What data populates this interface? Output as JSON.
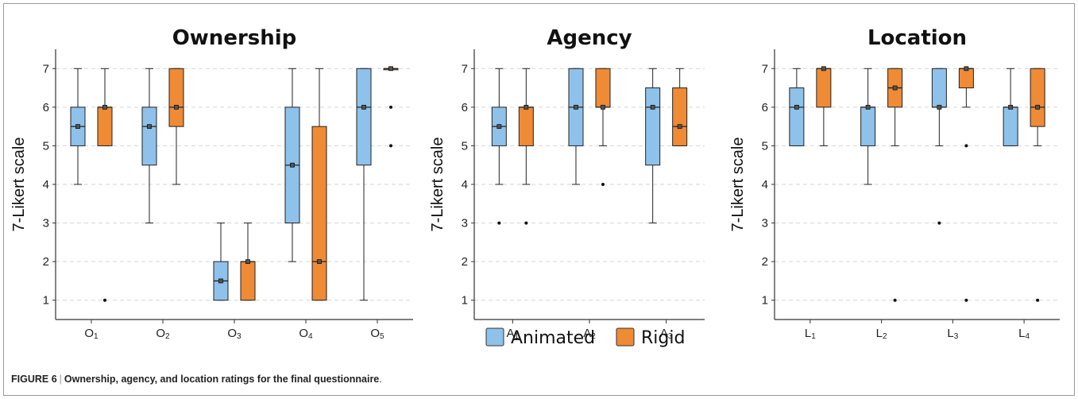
{
  "caption": {
    "label": "FIGURE 6",
    "separator": "|",
    "text": "Ownership, agency, and location ratings for the final questionnaire",
    "end": "."
  },
  "legend": {
    "items": [
      {
        "name": "Animated",
        "color": "#8ec2ea"
      },
      {
        "name": "Rigid",
        "color": "#ef8a35"
      }
    ]
  },
  "chart_data": [
    {
      "type": "box",
      "title": "Ownership",
      "ylabel": "7-Likert scale",
      "ylim": [
        0.5,
        7.5
      ],
      "yticks": [
        "1",
        "2",
        "3",
        "4",
        "5",
        "6",
        "7"
      ],
      "grid": "horizontal dashed",
      "categories": [
        {
          "main": "O",
          "sub": "1"
        },
        {
          "main": "O",
          "sub": "2"
        },
        {
          "main": "O",
          "sub": "3"
        },
        {
          "main": "O",
          "sub": "4"
        },
        {
          "main": "O",
          "sub": "5"
        }
      ],
      "series": [
        {
          "name": "Animated",
          "color": "#8ec2ea",
          "boxes": [
            {
              "min": 4,
              "q1": 5,
              "median": 5.5,
              "q3": 6,
              "max": 7,
              "outliers": []
            },
            {
              "min": 3,
              "q1": 4.5,
              "median": 5.5,
              "q3": 6,
              "max": 7,
              "outliers": []
            },
            {
              "min": 1,
              "q1": 1,
              "median": 1.5,
              "q3": 2,
              "max": 3,
              "outliers": []
            },
            {
              "min": 2,
              "q1": 3,
              "median": 4.5,
              "q3": 6,
              "max": 7,
              "outliers": []
            },
            {
              "min": 1,
              "q1": 4.5,
              "median": 6,
              "q3": 7,
              "max": 7,
              "outliers": []
            }
          ]
        },
        {
          "name": "Rigid",
          "color": "#ef8a35",
          "boxes": [
            {
              "min": 5,
              "q1": 5,
              "median": 6,
              "q3": 6,
              "max": 7,
              "outliers": [
                1
              ]
            },
            {
              "min": 4,
              "q1": 5.5,
              "median": 6,
              "q3": 7,
              "max": 7,
              "outliers": []
            },
            {
              "min": 1,
              "q1": 1,
              "median": 2,
              "q3": 2,
              "max": 3,
              "outliers": []
            },
            {
              "min": 1,
              "q1": 1,
              "median": 2,
              "q3": 5.5,
              "max": 7,
              "outliers": []
            },
            {
              "min": 7,
              "q1": 7,
              "median": 7,
              "q3": 7,
              "max": 7,
              "outliers": [
                6,
                5
              ]
            }
          ]
        }
      ]
    },
    {
      "type": "box",
      "title": "Agency",
      "ylabel": "7-Likert scale",
      "ylim": [
        0.5,
        7.5
      ],
      "yticks": [
        "1",
        "2",
        "3",
        "4",
        "5",
        "6",
        "7"
      ],
      "grid": "horizontal dashed",
      "categories": [
        {
          "main": "A",
          "sub": "1"
        },
        {
          "main": "A",
          "sub": "2"
        },
        {
          "main": "A",
          "sub": "3"
        }
      ],
      "series": [
        {
          "name": "Animated",
          "color": "#8ec2ea",
          "boxes": [
            {
              "min": 4,
              "q1": 5,
              "median": 5.5,
              "q3": 6,
              "max": 7,
              "outliers": [
                3
              ]
            },
            {
              "min": 4,
              "q1": 5,
              "median": 6,
              "q3": 7,
              "max": 7,
              "outliers": []
            },
            {
              "min": 3,
              "q1": 4.5,
              "median": 6,
              "q3": 6.5,
              "max": 7,
              "outliers": []
            }
          ]
        },
        {
          "name": "Rigid",
          "color": "#ef8a35",
          "boxes": [
            {
              "min": 4,
              "q1": 5,
              "median": 6,
              "q3": 6,
              "max": 7,
              "outliers": [
                3
              ]
            },
            {
              "min": 5,
              "q1": 6,
              "median": 6,
              "q3": 7,
              "max": 7,
              "outliers": [
                4
              ]
            },
            {
              "min": 5,
              "q1": 5,
              "median": 5.5,
              "q3": 6.5,
              "max": 7,
              "outliers": []
            }
          ]
        }
      ]
    },
    {
      "type": "box",
      "title": "Location",
      "ylabel": "7-Likert scale",
      "ylim": [
        0.5,
        7.5
      ],
      "yticks": [
        "1",
        "2",
        "3",
        "4",
        "5",
        "6",
        "7"
      ],
      "grid": "horizontal dashed",
      "categories": [
        {
          "main": "L",
          "sub": "1"
        },
        {
          "main": "L",
          "sub": "2"
        },
        {
          "main": "L",
          "sub": "3"
        },
        {
          "main": "L",
          "sub": "4"
        }
      ],
      "series": [
        {
          "name": "Animated",
          "color": "#8ec2ea",
          "boxes": [
            {
              "min": 5,
              "q1": 5,
              "median": 6,
              "q3": 6.5,
              "max": 7,
              "outliers": []
            },
            {
              "min": 4,
              "q1": 5,
              "median": 6,
              "q3": 6,
              "max": 7,
              "outliers": []
            },
            {
              "min": 5,
              "q1": 6,
              "median": 6,
              "q3": 7,
              "max": 7,
              "outliers": [
                3
              ]
            },
            {
              "min": 5,
              "q1": 5,
              "median": 6,
              "q3": 6,
              "max": 7,
              "outliers": []
            }
          ]
        },
        {
          "name": "Rigid",
          "color": "#ef8a35",
          "boxes": [
            {
              "min": 5,
              "q1": 6,
              "median": 7,
              "q3": 7,
              "max": 7,
              "outliers": []
            },
            {
              "min": 5,
              "q1": 6,
              "median": 6.5,
              "q3": 7,
              "max": 7,
              "outliers": [
                1
              ]
            },
            {
              "min": 6,
              "q1": 6.5,
              "median": 7,
              "q3": 7,
              "max": 7,
              "outliers": [
                5,
                1
              ]
            },
            {
              "min": 5,
              "q1": 5.5,
              "median": 6,
              "q3": 7,
              "max": 7,
              "outliers": [
                1
              ]
            }
          ]
        }
      ]
    }
  ]
}
